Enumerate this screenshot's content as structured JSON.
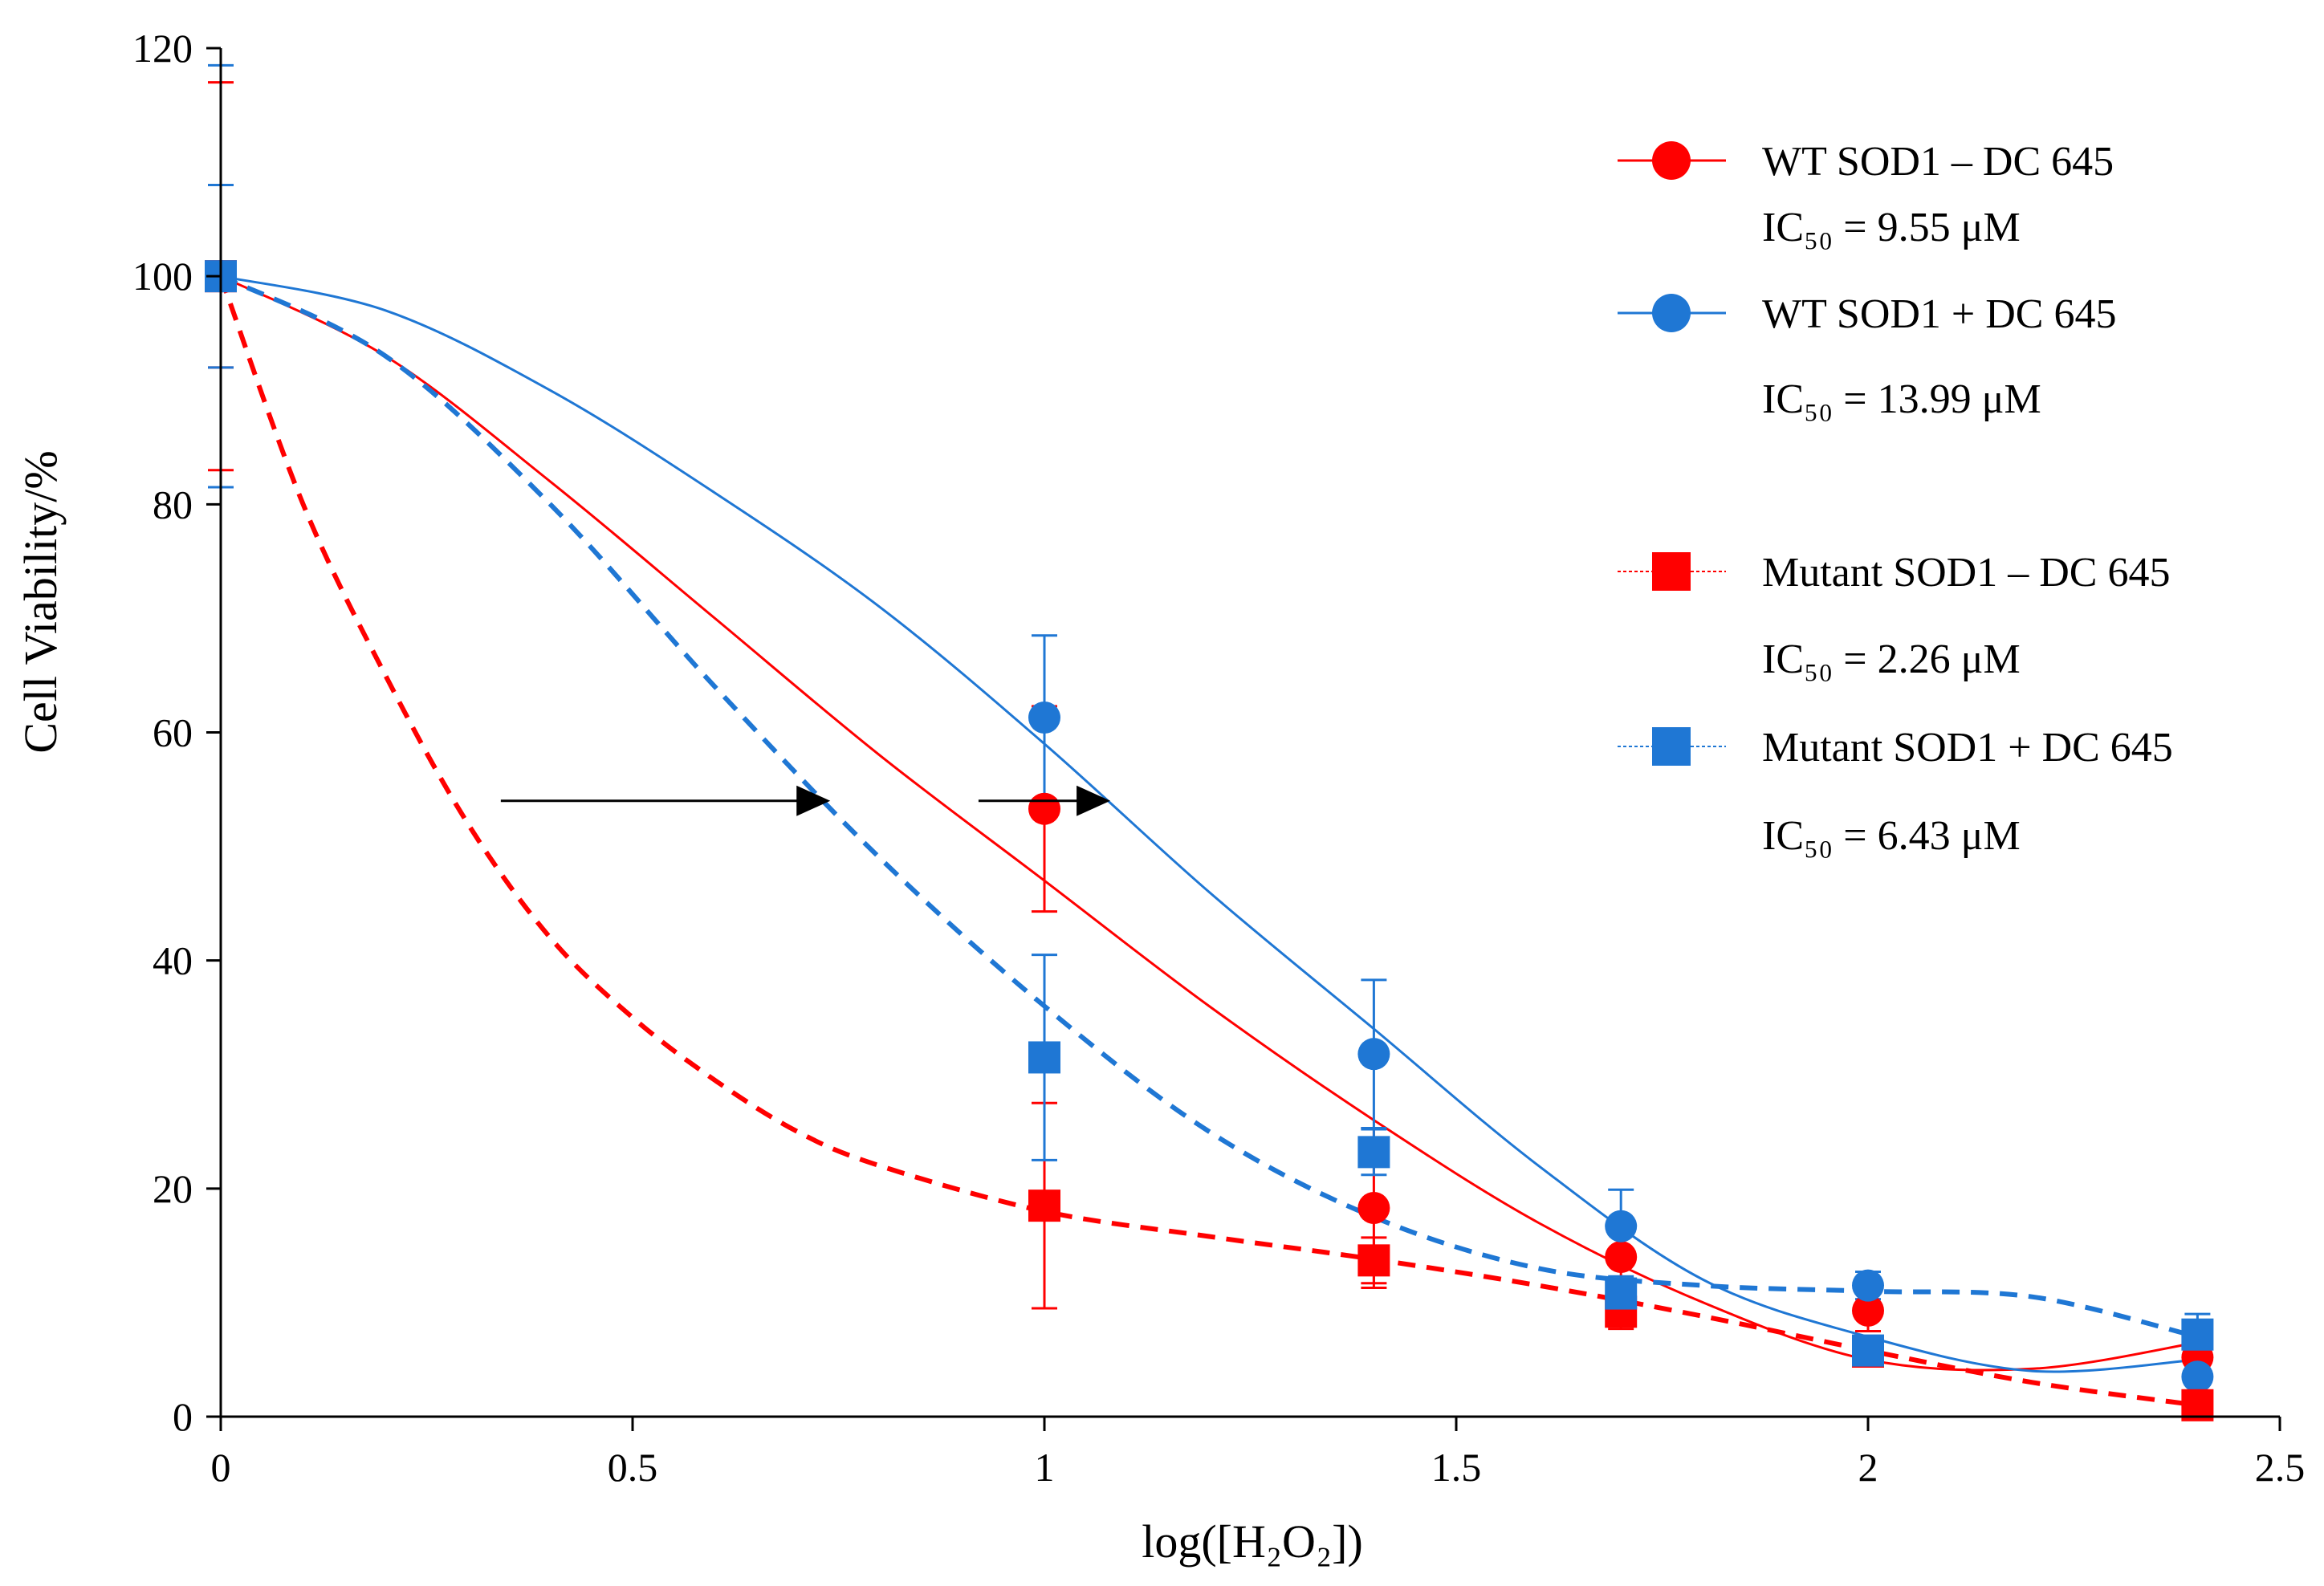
{
  "chart_data": {
    "type": "scatter",
    "title": "",
    "xlabel": "log([H₂O₂])",
    "ylabel": "Cell Viability/%",
    "xlim": [
      0,
      2.5
    ],
    "ylim": [
      0,
      120
    ],
    "x_ticks": [
      "0",
      "0.5",
      "1",
      "1.5",
      "2",
      "2.5"
    ],
    "y_ticks": [
      "0",
      "20",
      "40",
      "60",
      "80",
      "100",
      "120"
    ],
    "grid": false,
    "legend_position": "top-right",
    "series": [
      {
        "name": "WT SOD1 – DC 645",
        "ic50": "IC₅₀ = 9.55 μM",
        "color": "#ff0000",
        "marker": "circle",
        "line_style": "solid",
        "x": [
          0,
          1,
          1.4,
          1.7,
          2,
          2.4
        ],
        "y": [
          100,
          53.3,
          18.3,
          14,
          9.3,
          5.2
        ],
        "error": [
          17,
          9,
          7,
          2,
          1.8,
          1.5
        ],
        "fit": [
          [
            0,
            100
          ],
          [
            0.2,
            93
          ],
          [
            0.4,
            82
          ],
          [
            0.6,
            70
          ],
          [
            0.8,
            58
          ],
          [
            1.0,
            47
          ],
          [
            1.2,
            36
          ],
          [
            1.4,
            26
          ],
          [
            1.6,
            17
          ],
          [
            1.8,
            10
          ],
          [
            2.0,
            5
          ],
          [
            2.2,
            4.2
          ],
          [
            2.4,
            6.5
          ]
        ]
      },
      {
        "name": "WT SOD1 + DC 645",
        "ic50": "IC₅₀ = 13.99 μM",
        "color": "#1f77d4",
        "marker": "circle",
        "line_style": "solid",
        "x": [
          0,
          1,
          1.4,
          1.7,
          2,
          2.4
        ],
        "y": [
          100,
          61.3,
          31.8,
          16.7,
          11.5,
          3.5
        ],
        "error": [
          18.5,
          7.2,
          6.5,
          3.2,
          1.2,
          1.5
        ],
        "fit": [
          [
            0,
            100
          ],
          [
            0.2,
            97
          ],
          [
            0.4,
            90
          ],
          [
            0.6,
            81
          ],
          [
            0.8,
            71
          ],
          [
            1.0,
            59
          ],
          [
            1.2,
            46
          ],
          [
            1.4,
            34
          ],
          [
            1.6,
            22
          ],
          [
            1.8,
            12
          ],
          [
            2.0,
            7
          ],
          [
            2.2,
            4
          ],
          [
            2.4,
            5
          ]
        ]
      },
      {
        "name": "Mutant SOD1 – DC 645",
        "ic50": "IC₅₀ = 2.26 μM",
        "color": "#ff0000",
        "marker": "square",
        "line_style": "dashed",
        "x": [
          0,
          1,
          1.4,
          1.7,
          2,
          2.4
        ],
        "y": [
          100,
          18.5,
          13.7,
          9.2,
          5.7,
          1
        ],
        "error": [
          8,
          9,
          2,
          1.5,
          0.8,
          0.5
        ],
        "fit": [
          [
            0,
            100
          ],
          [
            0.1,
            80
          ],
          [
            0.2,
            65
          ],
          [
            0.3,
            52
          ],
          [
            0.4,
            42
          ],
          [
            0.5,
            35
          ],
          [
            0.6,
            29.5
          ],
          [
            0.7,
            25
          ],
          [
            0.8,
            22
          ],
          [
            1.0,
            18
          ],
          [
            1.2,
            15.8
          ],
          [
            1.4,
            13.8
          ],
          [
            1.6,
            11.5
          ],
          [
            1.8,
            8.8
          ],
          [
            2.0,
            5.8
          ],
          [
            2.2,
            3
          ],
          [
            2.4,
            1
          ]
        ]
      },
      {
        "name": "Mutant SOD1 + DC 645",
        "ic50": "IC₅₀ = 6.43 μM",
        "color": "#1f77d4",
        "marker": "square",
        "line_style": "dashed",
        "x": [
          0,
          1,
          1.4,
          1.7,
          2,
          2.4
        ],
        "y": [
          100,
          31.5,
          23.2,
          10.8,
          5.8,
          7.2
        ],
        "error": [
          8,
          9,
          2,
          1.5,
          1,
          1.8
        ],
        "fit": [
          [
            0,
            100
          ],
          [
            0.2,
            93
          ],
          [
            0.4,
            80
          ],
          [
            0.6,
            64
          ],
          [
            0.8,
            49
          ],
          [
            1.0,
            36
          ],
          [
            1.2,
            25
          ],
          [
            1.4,
            17.5
          ],
          [
            1.6,
            13
          ],
          [
            1.8,
            11.5
          ],
          [
            2.0,
            11
          ],
          [
            2.2,
            10.5
          ],
          [
            2.4,
            7
          ]
        ]
      }
    ],
    "annotations": [
      {
        "type": "arrow",
        "from": [
          0.34,
          54
        ],
        "to": [
          0.74,
          54
        ]
      },
      {
        "type": "arrow",
        "from": [
          0.92,
          54
        ],
        "to": [
          1.08,
          54
        ]
      }
    ]
  }
}
